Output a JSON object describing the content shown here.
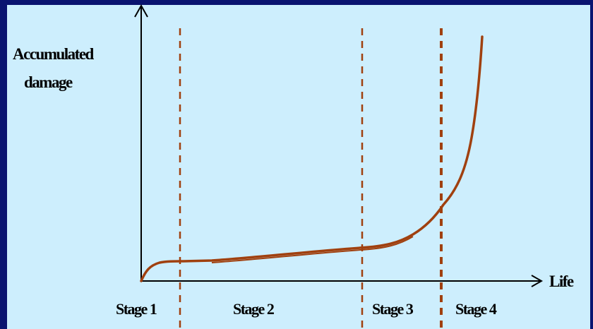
{
  "diagram": {
    "y_axis_label_line1": "Accumulated",
    "y_axis_label_line2": "damage",
    "x_axis_label": "Life",
    "stages": [
      {
        "label": "Stage 1"
      },
      {
        "label": "Stage 2"
      },
      {
        "label": "Stage 3"
      },
      {
        "label": "Stage 4"
      }
    ]
  },
  "colors": {
    "frame": "#0a1470",
    "panel": "#cdeefd",
    "curve": "#a0400f",
    "divider": "#a0400f",
    "axis": "#000000"
  }
}
